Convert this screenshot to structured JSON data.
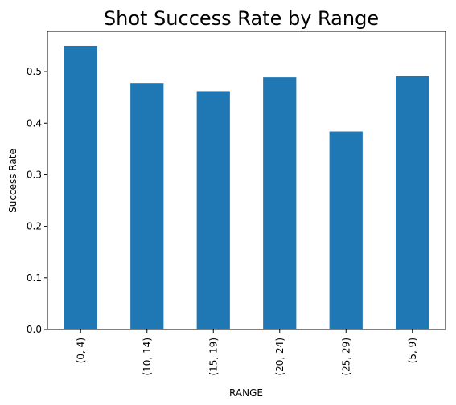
{
  "chart_data": {
    "type": "bar",
    "title": "Shot Success Rate by Range",
    "xlabel": "RANGE",
    "ylabel": "Success Rate",
    "categories": [
      "(0, 4)",
      "(10, 14)",
      "(15, 19)",
      "(20, 24)",
      "(25, 29)",
      "(5, 9)"
    ],
    "values": [
      0.55,
      0.478,
      0.462,
      0.489,
      0.384,
      0.491
    ],
    "ylim": [
      0,
      0.578
    ],
    "yticks": [
      0.0,
      0.1,
      0.2,
      0.3,
      0.4,
      0.5
    ],
    "ytick_labels": [
      "0.0",
      "0.1",
      "0.2",
      "0.3",
      "0.4",
      "0.5"
    ],
    "bar_color": "#1f77b4",
    "grid": false,
    "legend": "none"
  }
}
